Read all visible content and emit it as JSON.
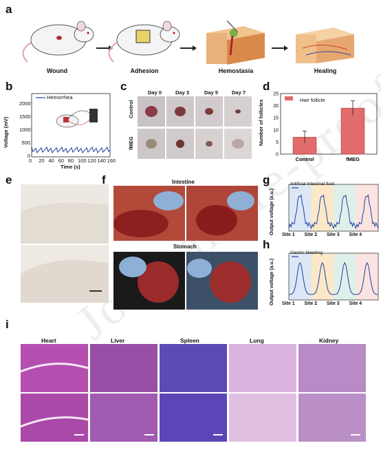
{
  "panels": {
    "a": "a",
    "b": "b",
    "c": "c",
    "d": "d",
    "e": "e",
    "f": "f",
    "g": "g",
    "h": "h",
    "i": "i"
  },
  "steps": [
    "Wound",
    "Adhesion",
    "Hemostasia",
    "Healing"
  ],
  "panel_b": {
    "legend": "Hemorrhea",
    "xlabel": "Time (s)",
    "ylabel": "Voltage (mV)",
    "xticks": [
      "0",
      "20",
      "40",
      "60",
      "80",
      "100",
      "120",
      "140",
      "160"
    ],
    "yticks": [
      "0",
      "500",
      "1000",
      "1500",
      "2000"
    ],
    "color": "#1f3ea0"
  },
  "panel_c": {
    "days": [
      "Day 0",
      "Day 3",
      "Day 5",
      "Day 7"
    ],
    "rows": [
      "Control",
      "fMEG"
    ]
  },
  "chart_data": {
    "type": "bar",
    "categories": [
      "Control",
      "fMEG"
    ],
    "values": [
      7,
      19
    ],
    "errors": [
      2.5,
      3
    ],
    "legend": "Hair follicle",
    "ylabel": "Number of follicles",
    "ylim": [
      0,
      25
    ],
    "yticks": [
      "0",
      "5",
      "10",
      "15",
      "20",
      "25"
    ],
    "color": "#e26b6b"
  },
  "panel_f": {
    "top": "Intestine",
    "bottom": "Stomach"
  },
  "panel_g": {
    "legend": "Artificial intestinal fluid",
    "ylabel": "Output voltage (a.u.)",
    "sites": [
      "Site 1",
      "Site 2",
      "Site 3",
      "Site 4"
    ]
  },
  "panel_h": {
    "legend": "Gastric bleeding",
    "ylabel": "Output voltage (a.u.)",
    "sites": [
      "Site 1",
      "Site 2",
      "Site 3",
      "Site 4"
    ]
  },
  "panel_i": {
    "organs": [
      "Heart",
      "Liver",
      "Spleen",
      "Lung",
      "Kidney"
    ]
  }
}
